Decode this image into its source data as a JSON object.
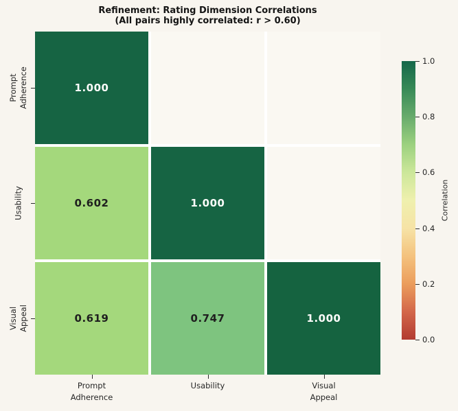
{
  "figure": {
    "bg_color": "#f8f5ef",
    "masked_cell_color": "#faf8f2",
    "grid_line_color": "#ffffff"
  },
  "chart_data": {
    "type": "heatmap",
    "title": "Refinement: Rating Dimension Correlations",
    "subtitle": "(All pairs highly correlated: r > 0.60)",
    "categories": [
      "Prompt Adherence",
      "Usability",
      "Visual Appeal"
    ],
    "matrix": [
      [
        1.0,
        null,
        null
      ],
      [
        0.602,
        1.0,
        null
      ],
      [
        0.619,
        0.747,
        1.0
      ]
    ],
    "cells": [
      {
        "row": 0,
        "col": 0,
        "label": "1.000",
        "bg": "#166443",
        "fg": "#fcfcfa"
      },
      {
        "row": 1,
        "col": 0,
        "label": "0.602",
        "bg": "#a4d87c",
        "fg": "#1f1f1f"
      },
      {
        "row": 1,
        "col": 1,
        "label": "1.000",
        "bg": "#166443",
        "fg": "#fcfcfa"
      },
      {
        "row": 2,
        "col": 0,
        "label": "0.619",
        "bg": "#a4d87c",
        "fg": "#1f1f1f"
      },
      {
        "row": 2,
        "col": 1,
        "label": "0.747",
        "bg": "#7ec47f",
        "fg": "#1f1f1f"
      },
      {
        "row": 2,
        "col": 2,
        "label": "1.000",
        "bg": "#156340",
        "fg": "#fcfcfa"
      }
    ],
    "xtick_labels": [
      "Prompt\nAdherence",
      "Usability",
      "Visual\nAppeal"
    ],
    "ytick_labels": [
      "Prompt\nAdherence",
      "Usability",
      "Visual\nAppeal"
    ],
    "colormap": "RdYlGn",
    "vmin": 0.0,
    "vmax": 1.0,
    "legend_position": "right",
    "colorbar": {
      "label": "Correlation",
      "ticks": [
        "1.0",
        "0.8",
        "0.6",
        "0.4",
        "0.2",
        "0.0"
      ],
      "gradient_stops": [
        {
          "pos": 0.0,
          "color": "#b23b31"
        },
        {
          "pos": 0.1,
          "color": "#d3674a"
        },
        {
          "pos": 0.2,
          "color": "#eb9d5c"
        },
        {
          "pos": 0.3,
          "color": "#f4c27e"
        },
        {
          "pos": 0.4,
          "color": "#f6e3a6"
        },
        {
          "pos": 0.5,
          "color": "#eff0ae"
        },
        {
          "pos": 0.6,
          "color": "#cce79a"
        },
        {
          "pos": 0.7,
          "color": "#9cd17f"
        },
        {
          "pos": 0.8,
          "color": "#68ab6c"
        },
        {
          "pos": 0.9,
          "color": "#388a57"
        },
        {
          "pos": 1.0,
          "color": "#15674a"
        }
      ]
    }
  }
}
